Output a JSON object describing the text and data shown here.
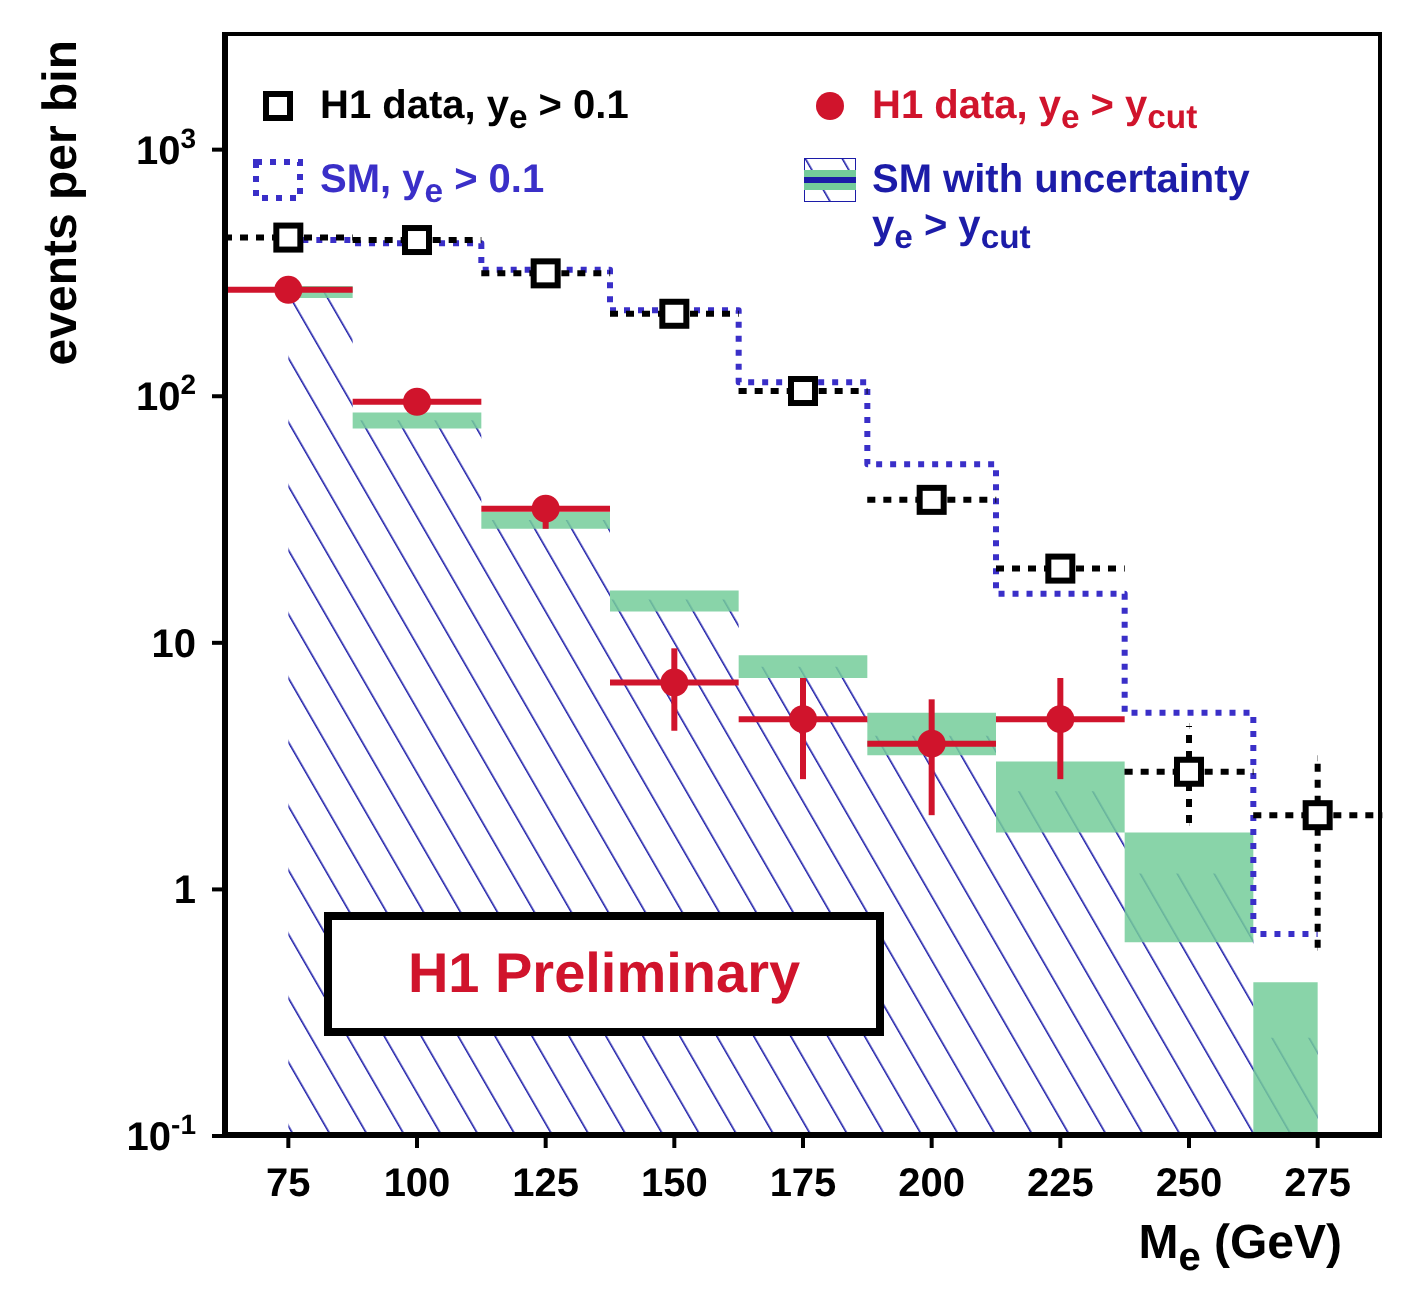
{
  "chart_data": {
    "type": "scatter",
    "xlabel": "M$_{e}$ (GeV)",
    "ylabel": "events per bin",
    "x": [
      75,
      100,
      125,
      150,
      175,
      200,
      225,
      250,
      275
    ],
    "xlim": [
      62.5,
      287.5
    ],
    "xticks": [
      75,
      100,
      125,
      150,
      175,
      200,
      225,
      250,
      275
    ],
    "ylim": [
      0.1,
      3000
    ],
    "yticks": [
      {
        "value": 1000,
        "label": "10$^{3}$"
      },
      {
        "value": 100,
        "label": "10$^{2}$"
      },
      10,
      1,
      {
        "value": 0.1,
        "label": "10$^{-1}$"
      }
    ],
    "log": true,
    "legend": "top",
    "annotations": [
      "H1 Preliminary"
    ],
    "series": [
      {
        "name": "H1 data, y$_{e}$ > 0.1",
        "marker": "square",
        "color": "#000000",
        "values": [
          440,
          430,
          315,
          216,
          105,
          38,
          20,
          3.0,
          2.0
        ],
        "errors": [
          null,
          null,
          null,
          null,
          null,
          null,
          null,
          [
            1.86,
            4.6
          ],
          [
            0.58,
            3.4
          ]
        ],
        "xerrors": [
          12.5,
          12.5,
          12.5,
          12.5,
          12.5,
          12.5,
          12.5,
          12.5,
          12.5
        ]
      },
      {
        "name": "SM, y$_{e}$ > 0.1",
        "type": "step",
        "line_style": "dotted",
        "color": "#3a2fc8",
        "values": [
          430,
          417,
          326,
          223,
          114,
          53,
          15.8,
          5.2,
          0.66
        ]
      },
      {
        "name": "H1 data, y$_{e}$ > y$_{cut}$",
        "marker": "circle",
        "color": "#d0142c",
        "x": [
          75,
          100,
          125,
          150,
          175,
          200,
          225
        ],
        "values": [
          270,
          95,
          35,
          6.9,
          4.9,
          3.9,
          4.9
        ],
        "errors": [
          null,
          null,
          [
            29,
            38
          ],
          [
            4.4,
            9.5
          ],
          [
            2.8,
            7.2
          ],
          [
            2.0,
            5.9
          ],
          [
            2.8,
            7.2
          ]
        ],
        "xerrors": [
          12.5,
          12.5,
          12.5,
          12.5,
          12.5,
          12.5,
          12.5
        ]
      },
      {
        "name": "SM with uncertainty y$_{e}$ > y$_{cut}$",
        "type": "area",
        "color": "#1c1ca8",
        "values": [
          267,
          80,
          31.5,
          15,
          8.0,
          4.2,
          2.5,
          1.16,
          0.25
        ],
        "lower": [
          250,
          74,
          29,
          13.4,
          7.2,
          3.5,
          1.7,
          0.61,
          0.1
        ],
        "upper": [
          280,
          86,
          34,
          16.3,
          8.9,
          5.2,
          3.3,
          1.7,
          0.42
        ]
      }
    ]
  }
}
